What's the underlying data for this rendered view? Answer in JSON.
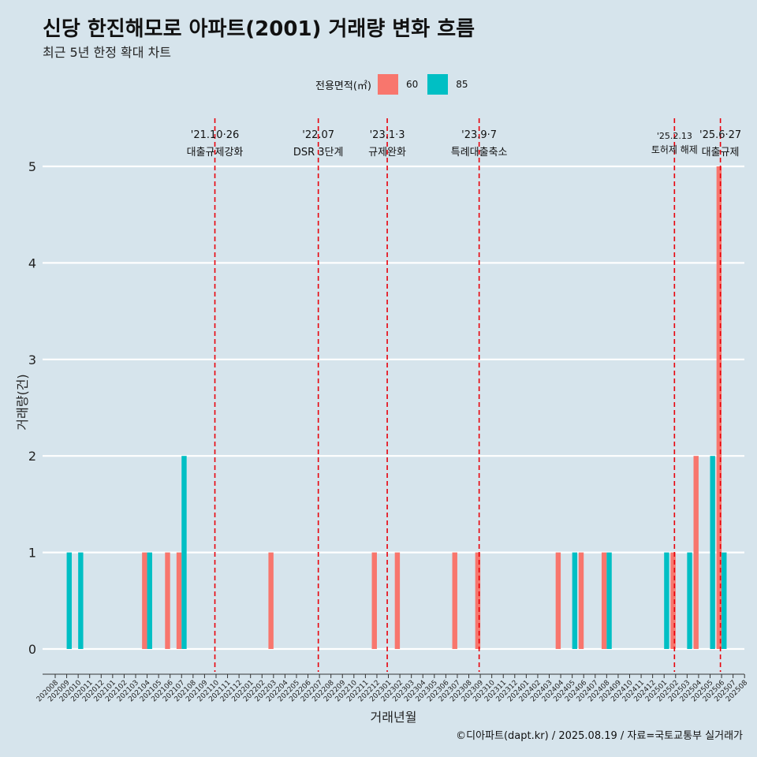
{
  "title": "신당 한진해모로 아파트(2001) 거래량 변화 흐름",
  "subtitle": "최근 5년 한정 확대 차트",
  "legend": {
    "title": "전용면적(㎡)",
    "items": [
      {
        "label": "60",
        "color": "#f8766d"
      },
      {
        "label": "85",
        "color": "#00bfc4"
      }
    ]
  },
  "caption": "©디아파트(dapt.kr) / 2025.08.19 / 자료=국토교통부 실거래가",
  "chart_data": {
    "type": "bar",
    "xlabel": "거래년월",
    "ylabel": "거래량(건)",
    "ylim": [
      0,
      5
    ],
    "yticks": [
      0,
      1,
      2,
      3,
      4,
      5
    ],
    "grid": true,
    "legend_position": "top",
    "categories": [
      "202008",
      "202009",
      "202010",
      "202011",
      "202012",
      "202101",
      "202102",
      "202103",
      "202104",
      "202105",
      "202106",
      "202107",
      "202108",
      "202109",
      "202110",
      "202111",
      "202112",
      "202201",
      "202202",
      "202203",
      "202204",
      "202205",
      "202206",
      "202207",
      "202208",
      "202209",
      "202210",
      "202211",
      "202212",
      "202301",
      "202302",
      "202303",
      "202304",
      "202305",
      "202306",
      "202307",
      "202308",
      "202309",
      "202310",
      "202311",
      "202312",
      "202401",
      "202402",
      "202403",
      "202404",
      "202405",
      "202406",
      "202407",
      "202408",
      "202409",
      "202410",
      "202411",
      "202412",
      "202501",
      "202502",
      "202503",
      "202504",
      "202505",
      "202506",
      "202507",
      "202508"
    ],
    "series": [
      {
        "name": "60",
        "color": "#f8766d",
        "values": [
          0,
          0,
          0,
          0,
          0,
          0,
          0,
          0,
          1,
          0,
          1,
          1,
          0,
          0,
          0,
          0,
          0,
          0,
          0,
          1,
          0,
          0,
          0,
          0,
          0,
          0,
          0,
          0,
          1,
          0,
          1,
          0,
          0,
          0,
          0,
          1,
          0,
          1,
          0,
          0,
          0,
          0,
          0,
          0,
          1,
          0,
          1,
          0,
          1,
          0,
          0,
          0,
          0,
          0,
          1,
          0,
          2,
          0,
          5,
          0,
          0
        ]
      },
      {
        "name": "85",
        "color": "#00bfc4",
        "values": [
          0,
          1,
          1,
          0,
          0,
          0,
          0,
          0,
          1,
          0,
          0,
          2,
          0,
          0,
          0,
          0,
          0,
          0,
          0,
          0,
          0,
          0,
          0,
          0,
          0,
          0,
          0,
          0,
          0,
          0,
          0,
          0,
          0,
          0,
          0,
          0,
          0,
          0,
          0,
          0,
          0,
          0,
          0,
          0,
          0,
          1,
          0,
          0,
          1,
          0,
          0,
          0,
          0,
          1,
          0,
          1,
          0,
          2,
          1,
          0,
          0
        ]
      }
    ],
    "annotations": [
      {
        "date": "'21.10·26",
        "text": "대출규제강화",
        "month": "202110"
      },
      {
        "date": "'22.07",
        "text": "DSR 3단계",
        "month": "202207"
      },
      {
        "date": "'23.1·3",
        "text": "규제완화",
        "month": "202301"
      },
      {
        "date": "'23.9·7",
        "text": "특례대출축소",
        "month": "202309"
      },
      {
        "date": "'25.2.13",
        "text": "토허제 해제",
        "month": "202502"
      },
      {
        "date": "'25.6·27",
        "text": "대출규제",
        "month": "202506"
      }
    ]
  }
}
